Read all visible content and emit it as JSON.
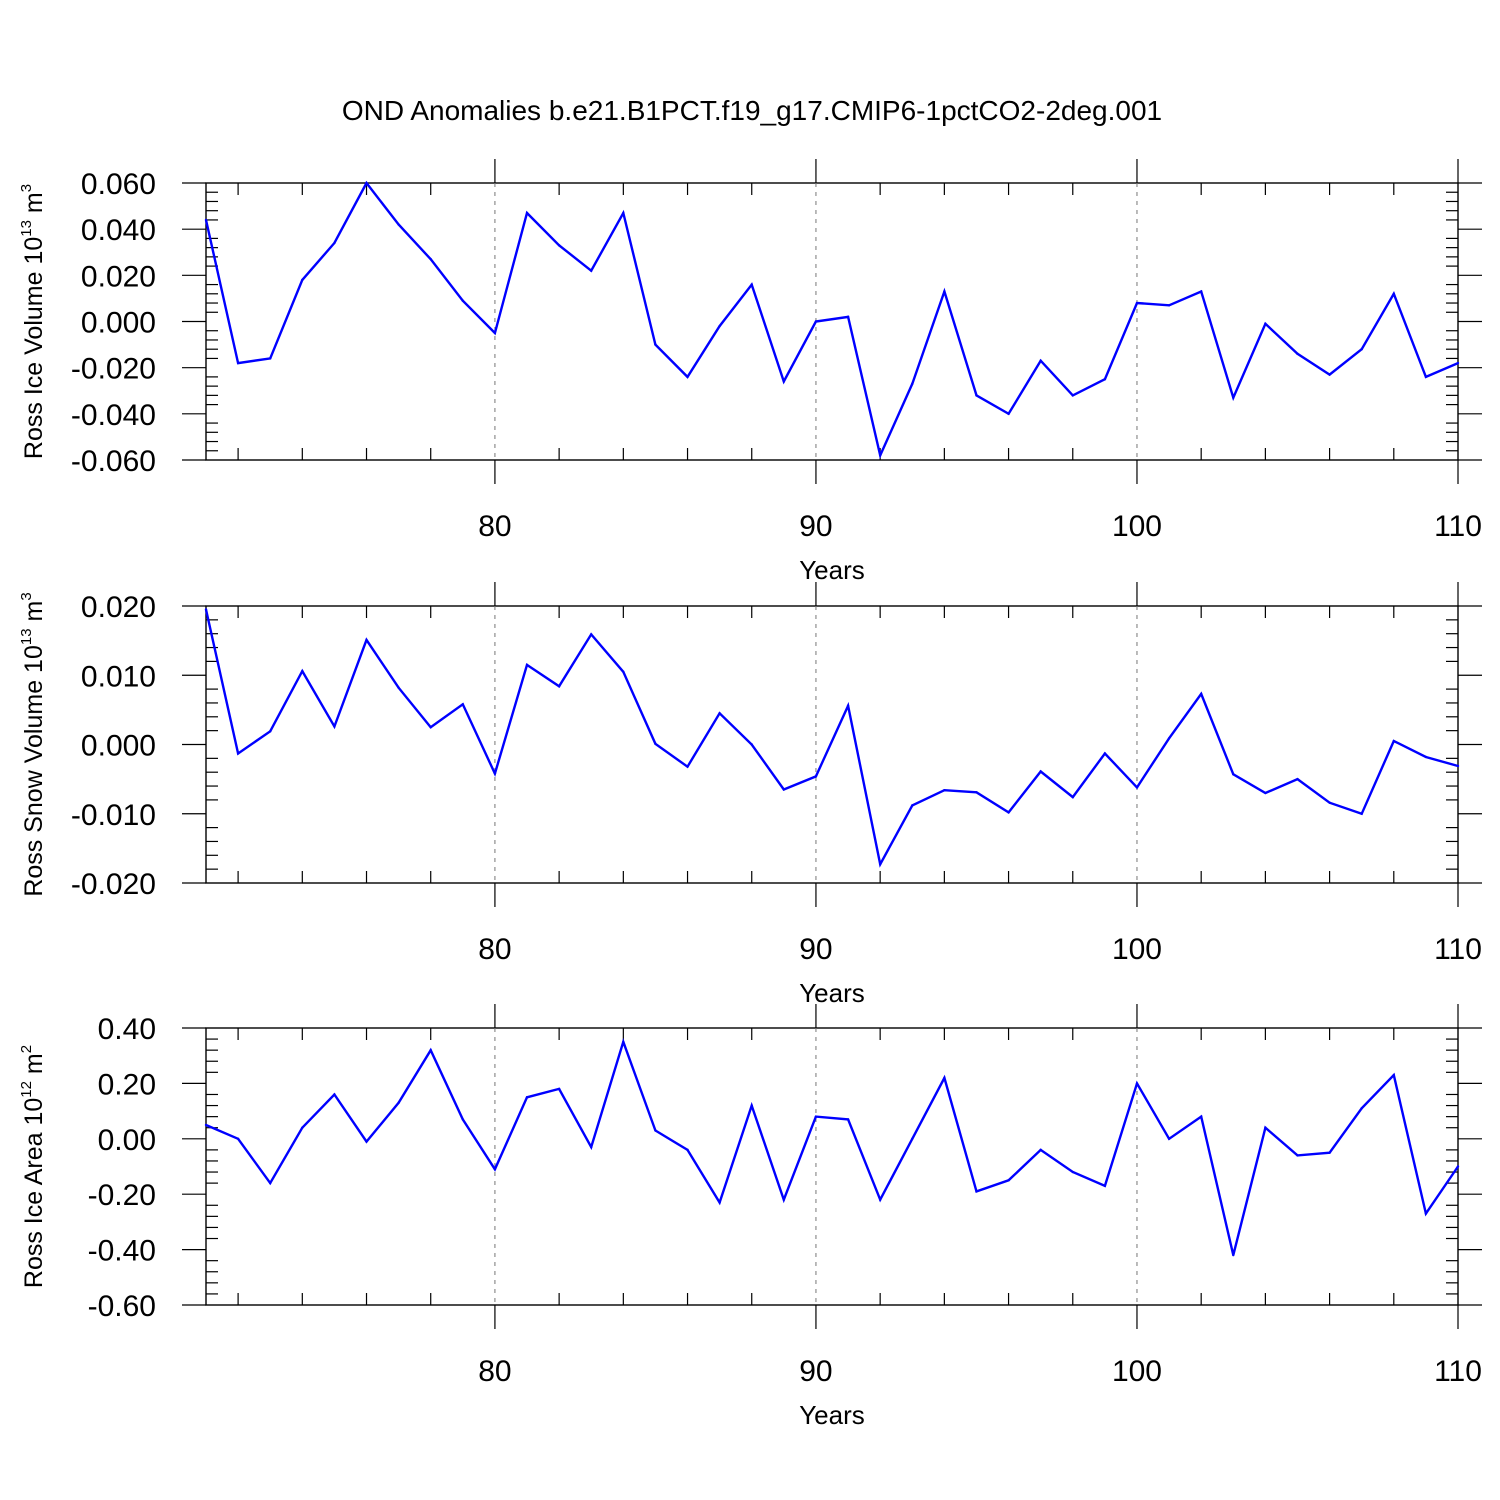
{
  "title": "OND Anomalies b.e21.B1PCT.f19_g17.CMIP6-1pctCO2-2deg.001",
  "colors": {
    "line": "#0000ff",
    "axis": "#000000",
    "grid": "#777777"
  },
  "chart_data": [
    {
      "type": "line",
      "ylabel_main": "Ross Ice Volume 10",
      "ylabel_exp": "13",
      "ylabel_unit": "m",
      "ylabel_unit_exp": "3",
      "xlabel": "Years",
      "xlim": [
        71,
        110
      ],
      "ylim": [
        -0.06,
        0.06
      ],
      "ytick_values": [
        -0.06,
        -0.04,
        -0.02,
        0.0,
        0.02,
        0.04,
        0.06
      ],
      "ytick_labels": [
        "-0.060",
        "-0.040",
        "-0.020",
        "0.000",
        "0.020",
        "0.040",
        "0.060"
      ],
      "xtick_values": [
        80,
        90,
        100,
        110
      ],
      "xtick_labels": [
        "80",
        "90",
        "100",
        "110"
      ],
      "gridlines_x": [
        80,
        90,
        100
      ],
      "x": [
        71,
        72,
        73,
        74,
        75,
        76,
        77,
        78,
        79,
        80,
        81,
        82,
        83,
        84,
        85,
        86,
        87,
        88,
        89,
        90,
        91,
        92,
        93,
        94,
        95,
        96,
        97,
        98,
        99,
        100,
        101,
        102,
        103,
        104,
        105,
        106,
        107,
        108,
        109,
        110
      ],
      "y": [
        0.044,
        -0.018,
        -0.016,
        0.018,
        0.034,
        0.06,
        0.042,
        0.027,
        0.009,
        -0.005,
        0.047,
        0.033,
        0.022,
        0.047,
        -0.01,
        -0.024,
        -0.002,
        0.016,
        -0.026,
        0.0,
        0.002,
        -0.058,
        -0.027,
        0.013,
        -0.032,
        -0.04,
        -0.017,
        -0.032,
        -0.025,
        0.008,
        0.007,
        0.013,
        -0.033,
        -0.001,
        -0.014,
        -0.023,
        -0.012,
        0.012,
        -0.024,
        -0.018
      ]
    },
    {
      "type": "line",
      "ylabel_main": "Ross Snow Volume 10",
      "ylabel_exp": "13",
      "ylabel_unit": "m",
      "ylabel_unit_exp": "3",
      "xlabel": "Years",
      "xlim": [
        71,
        110
      ],
      "ylim": [
        -0.02,
        0.02
      ],
      "ytick_values": [
        -0.02,
        -0.01,
        0.0,
        0.01,
        0.02
      ],
      "ytick_labels": [
        "-0.020",
        "-0.010",
        "0.000",
        "0.010",
        "0.020"
      ],
      "xtick_values": [
        80,
        90,
        100,
        110
      ],
      "xtick_labels": [
        "80",
        "90",
        "100",
        "110"
      ],
      "gridlines_x": [
        80,
        90,
        100
      ],
      "x": [
        71,
        72,
        73,
        74,
        75,
        76,
        77,
        78,
        79,
        80,
        81,
        82,
        83,
        84,
        85,
        86,
        87,
        88,
        89,
        90,
        91,
        92,
        93,
        94,
        95,
        96,
        97,
        98,
        99,
        100,
        101,
        102,
        103,
        104,
        105,
        106,
        107,
        108,
        109,
        110
      ],
      "y": [
        0.0195,
        -0.0013,
        0.0019,
        0.0106,
        0.0026,
        0.0151,
        0.0082,
        0.0025,
        0.0058,
        -0.0042,
        0.0115,
        0.0084,
        0.0159,
        0.0105,
        0.0001,
        -0.0032,
        0.0045,
        0.0,
        -0.0065,
        -0.0046,
        0.0056,
        -0.0173,
        -0.0088,
        -0.0066,
        -0.0069,
        -0.0098,
        -0.0039,
        -0.0076,
        -0.0013,
        -0.0062,
        0.0009,
        0.0073,
        -0.0043,
        -0.007,
        -0.005,
        -0.0084,
        -0.01,
        0.0005,
        -0.0018,
        -0.0031
      ]
    },
    {
      "type": "line",
      "ylabel_main": "Ross Ice Area 10",
      "ylabel_exp": "12",
      "ylabel_unit": "m",
      "ylabel_unit_exp": "2",
      "xlabel": "Years",
      "xlim": [
        71,
        110
      ],
      "ylim": [
        -0.6,
        0.4
      ],
      "ytick_values": [
        -0.6,
        -0.4,
        -0.2,
        0.0,
        0.2,
        0.4
      ],
      "ytick_labels": [
        "-0.60",
        "-0.40",
        "-0.20",
        "0.00",
        "0.20",
        "0.40"
      ],
      "xtick_values": [
        80,
        90,
        100,
        110
      ],
      "xtick_labels": [
        "80",
        "90",
        "100",
        "110"
      ],
      "gridlines_x": [
        80,
        90,
        100
      ],
      "x": [
        71,
        72,
        73,
        74,
        75,
        76,
        77,
        78,
        79,
        80,
        81,
        82,
        83,
        84,
        85,
        86,
        87,
        88,
        89,
        90,
        91,
        92,
        93,
        94,
        95,
        96,
        97,
        98,
        99,
        100,
        101,
        102,
        103,
        104,
        105,
        106,
        107,
        108,
        109,
        110
      ],
      "y": [
        0.05,
        0.0,
        -0.16,
        0.04,
        0.16,
        -0.01,
        0.13,
        0.32,
        0.07,
        -0.11,
        0.15,
        0.18,
        -0.03,
        0.35,
        0.03,
        -0.04,
        -0.23,
        0.12,
        -0.22,
        0.08,
        0.07,
        -0.22,
        0.0,
        0.22,
        -0.19,
        -0.15,
        -0.04,
        -0.12,
        -0.17,
        0.2,
        0.0,
        0.08,
        -0.42,
        0.04,
        -0.06,
        -0.05,
        0.11,
        0.23,
        -0.27,
        -0.1
      ]
    }
  ]
}
